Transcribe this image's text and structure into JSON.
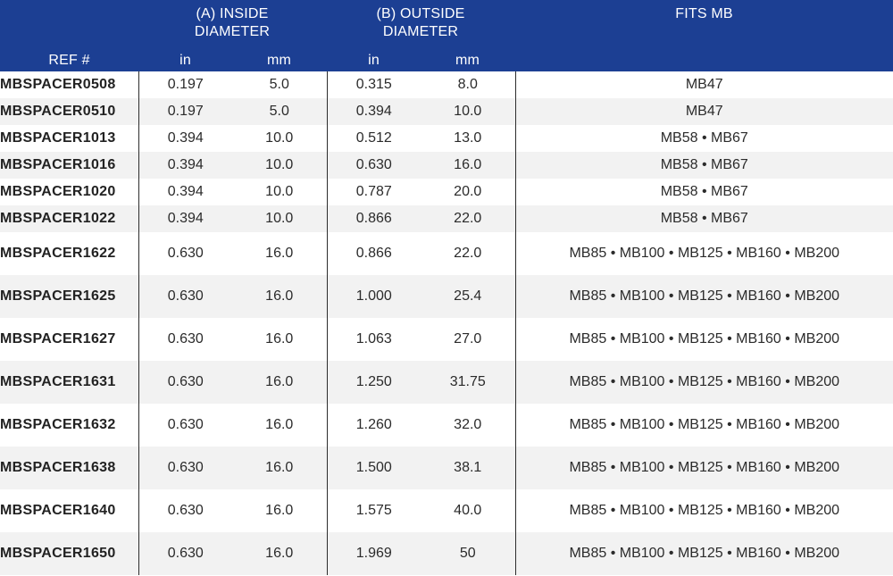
{
  "header": {
    "inside_line1": "(A) INSIDE",
    "inside_line2": "DIAMETER",
    "outside_line1": "(B) OUTSIDE",
    "outside_line2": "DIAMETER",
    "fits": "FITS MB",
    "ref": "REF #",
    "in": "in",
    "mm": "mm"
  },
  "rows": [
    {
      "ref": "MBSPACER0508",
      "a_in": "0.197",
      "a_mm": "5.0",
      "b_in": "0.315",
      "b_mm": "8.0",
      "fits": "MB47"
    },
    {
      "ref": "MBSPACER0510",
      "a_in": "0.197",
      "a_mm": "5.0",
      "b_in": "0.394",
      "b_mm": "10.0",
      "fits": "MB47"
    },
    {
      "ref": "MBSPACER1013",
      "a_in": "0.394",
      "a_mm": "10.0",
      "b_in": "0.512",
      "b_mm": "13.0",
      "fits": "MB58 • MB67"
    },
    {
      "ref": "MBSPACER1016",
      "a_in": "0.394",
      "a_mm": "10.0",
      "b_in": "0.630",
      "b_mm": "16.0",
      "fits": "MB58 • MB67"
    },
    {
      "ref": "MBSPACER1020",
      "a_in": "0.394",
      "a_mm": "10.0",
      "b_in": "0.787",
      "b_mm": "20.0",
      "fits": "MB58 • MB67"
    },
    {
      "ref": "MBSPACER1022",
      "a_in": "0.394",
      "a_mm": "10.0",
      "b_in": "0.866",
      "b_mm": "22.0",
      "fits": "MB58 • MB67"
    },
    {
      "ref": "MBSPACER1622",
      "a_in": "0.630",
      "a_mm": "16.0",
      "b_in": "0.866",
      "b_mm": "22.0",
      "fits": "MB85 • MB100 • MB125 • MB160 • MB200"
    },
    {
      "ref": "MBSPACER1625",
      "a_in": "0.630",
      "a_mm": "16.0",
      "b_in": "1.000",
      "b_mm": "25.4",
      "fits": "MB85 • MB100 • MB125 • MB160 • MB200"
    },
    {
      "ref": "MBSPACER1627",
      "a_in": "0.630",
      "a_mm": "16.0",
      "b_in": "1.063",
      "b_mm": "27.0",
      "fits": "MB85 • MB100 • MB125 • MB160 • MB200"
    },
    {
      "ref": "MBSPACER1631",
      "a_in": "0.630",
      "a_mm": "16.0",
      "b_in": "1.250",
      "b_mm": "31.75",
      "fits": "MB85 • MB100 • MB125 • MB160 • MB200"
    },
    {
      "ref": "MBSPACER1632",
      "a_in": "0.630",
      "a_mm": "16.0",
      "b_in": "1.260",
      "b_mm": "32.0",
      "fits": "MB85 • MB100 • MB125 • MB160 • MB200"
    },
    {
      "ref": "MBSPACER1638",
      "a_in": "0.630",
      "a_mm": "16.0",
      "b_in": "1.500",
      "b_mm": "38.1",
      "fits": "MB85 • MB100 • MB125 • MB160 • MB200"
    },
    {
      "ref": "MBSPACER1640",
      "a_in": "0.630",
      "a_mm": "16.0",
      "b_in": "1.575",
      "b_mm": "40.0",
      "fits": "MB85 • MB100 • MB125 • MB160 • MB200"
    },
    {
      "ref": "MBSPACER1650",
      "a_in": "0.630",
      "a_mm": "16.0",
      "b_in": "1.969",
      "b_mm": "50",
      "fits": "MB85 • MB100 • MB125 • MB160 • MB200"
    }
  ]
}
